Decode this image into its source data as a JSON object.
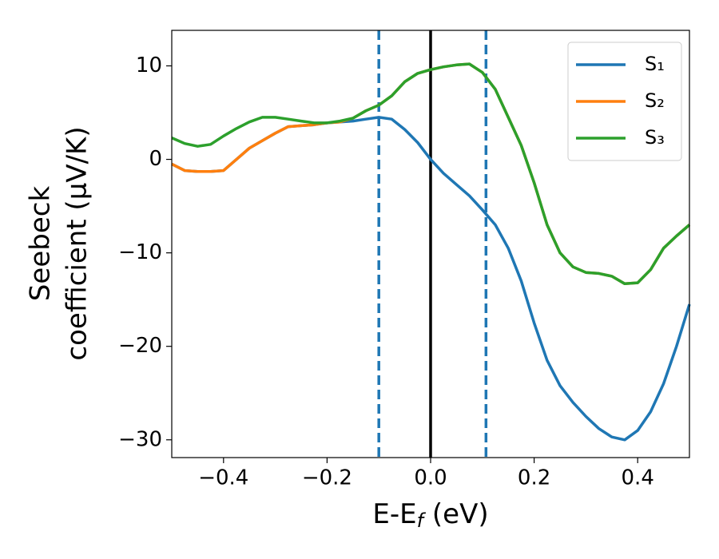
{
  "chart_data": {
    "type": "line",
    "xlabel": [
      "E-E",
      "f",
      " (eV)"
    ],
    "ylabel": [
      "Seebeck",
      "coefficient  (μV/K)"
    ],
    "xlim": [
      -0.5,
      0.5
    ],
    "ylim": [
      -31.9,
      13.8
    ],
    "xticks": [
      {
        "value": -0.4,
        "label": "−0.4"
      },
      {
        "value": -0.2,
        "label": "−0.2"
      },
      {
        "value": 0,
        "label": "0.0"
      },
      {
        "value": 0.2,
        "label": "0.2"
      },
      {
        "value": 0.4,
        "label": "0.4"
      }
    ],
    "yticks": [
      {
        "value": -30,
        "label": "−30"
      },
      {
        "value": -20,
        "label": "−20"
      },
      {
        "value": -10,
        "label": "−10"
      },
      0,
      10
    ],
    "grid": false,
    "legend": "upper right",
    "x": [
      -0.5,
      -0.475,
      -0.45,
      -0.425,
      -0.4,
      -0.375,
      -0.35,
      -0.325,
      -0.3,
      -0.275,
      -0.25,
      -0.225,
      -0.2,
      -0.175,
      -0.15,
      -0.125,
      -0.1,
      -0.075,
      -0.05,
      -0.025,
      0,
      0.025,
      0.05,
      0.075,
      0.1,
      0.125,
      0.15,
      0.175,
      0.2,
      0.225,
      0.25,
      0.275,
      0.3,
      0.325,
      0.35,
      0.375,
      0.4,
      0.425,
      0.45,
      0.475,
      0.5
    ],
    "series": [
      {
        "name": "S₁",
        "color": "#1f77b4",
        "values": [
          -0.5,
          -1.2,
          -1.3,
          -1.3,
          -1.2,
          0,
          1.2,
          2,
          2.8,
          3.5,
          3.6,
          3.7,
          3.9,
          4.0,
          4.1,
          4.3,
          4.5,
          4.3,
          3.2,
          1.8,
          0,
          -1.5,
          -2.7,
          -3.9,
          -5.4,
          -7,
          -9.5,
          -13,
          -17.5,
          -21.5,
          -24.2,
          -26,
          -27.5,
          -28.8,
          -29.7,
          -30,
          -29,
          -27,
          -24,
          -20,
          -15.5
        ]
      },
      {
        "name": "S₂",
        "color": "#ff7f0e",
        "values": [
          -0.5,
          -1.2,
          -1.3,
          -1.3,
          -1.2,
          0,
          1.2,
          2,
          2.8,
          3.5,
          3.6,
          3.7,
          3.9,
          4.0,
          4.4,
          5.2,
          5.8,
          6.8,
          8.3,
          9.2,
          9.6,
          9.9,
          10.1,
          10.2,
          9.3,
          7.5,
          4.5,
          1.5,
          -2.5,
          -7,
          -10,
          -11.5,
          -12.1,
          -12.2,
          -12.5,
          -13.3,
          -13.2,
          -11.8,
          -9.5,
          -8.2,
          -7
        ]
      },
      {
        "name": "S₃",
        "color": "#2ca02c",
        "values": [
          2.3,
          1.7,
          1.4,
          1.6,
          2.5,
          3.3,
          4.0,
          4.5,
          4.5,
          4.3,
          4.1,
          3.9,
          3.9,
          4.1,
          4.4,
          5.2,
          5.8,
          6.8,
          8.3,
          9.2,
          9.6,
          9.9,
          10.1,
          10.2,
          9.3,
          7.5,
          4.5,
          1.5,
          -2.5,
          -7,
          -10,
          -11.5,
          -12.1,
          -12.2,
          -12.5,
          -13.3,
          -13.2,
          -11.8,
          -9.5,
          -8.2,
          -7
        ]
      }
    ],
    "vlines": [
      {
        "x": -0.1,
        "color": "#1f77b4",
        "style": "dashed"
      },
      {
        "x": 0,
        "color": "#000000",
        "style": "solid"
      },
      {
        "x": 0.107,
        "color": "#1f77b4",
        "style": "dashed"
      }
    ]
  }
}
